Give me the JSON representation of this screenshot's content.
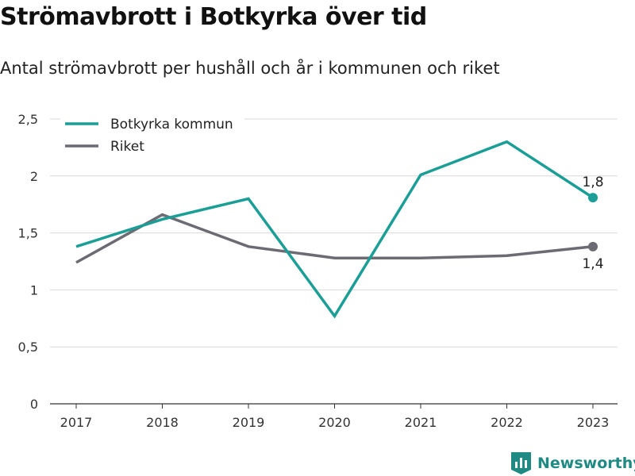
{
  "title": "Strömavbrott i Botkyrka över tid",
  "subtitle": "Antal strömavbrott per hushåll och år i kommunen och riket",
  "brand": "Newsworthy",
  "chart_data": {
    "type": "line",
    "title": "Strömavbrott i Botkyrka över tid",
    "subtitle": "Antal strömavbrott per hushåll och år i kommunen och riket",
    "xlabel": "",
    "ylabel": "",
    "categories": [
      "2017",
      "2018",
      "2019",
      "2020",
      "2021",
      "2022",
      "2023"
    ],
    "yticks": [
      0,
      0.5,
      1,
      1.5,
      2,
      2.5
    ],
    "ytick_labels": [
      "0",
      "0,5",
      "1",
      "1,5",
      "2",
      "2,5"
    ],
    "ylim": [
      0,
      2.5
    ],
    "grid": true,
    "legend": "top-left",
    "series": [
      {
        "name": "Botkyrka kommun",
        "color": "#1a9e96",
        "values": [
          1.38,
          1.62,
          1.8,
          0.77,
          2.01,
          2.3,
          1.81
        ],
        "end_label": "1,8"
      },
      {
        "name": "Riket",
        "color": "#6c6b73",
        "values": [
          1.24,
          1.66,
          1.38,
          1.28,
          1.28,
          1.3,
          1.38
        ],
        "end_label": "1,4"
      }
    ]
  }
}
